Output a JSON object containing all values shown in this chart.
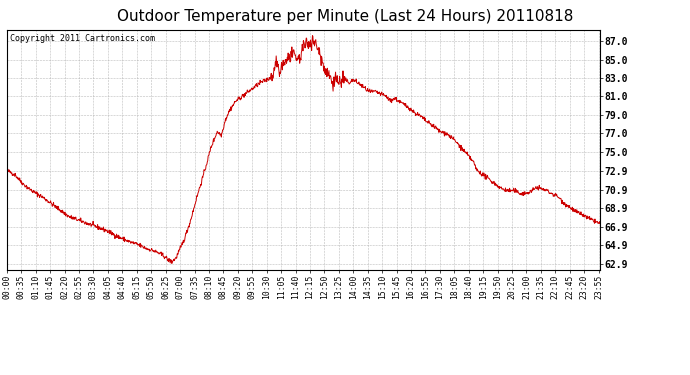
{
  "title": "Outdoor Temperature per Minute (Last 24 Hours) 20110818",
  "copyright": "Copyright 2011 Cartronics.com",
  "line_color": "#cc0000",
  "bg_color": "#ffffff",
  "plot_bg_color": "#ffffff",
  "grid_color": "#aaaaaa",
  "yticks": [
    62.9,
    64.9,
    66.9,
    68.9,
    70.9,
    72.9,
    75.0,
    77.0,
    79.0,
    81.0,
    83.0,
    85.0,
    87.0
  ],
  "ylim": [
    62.2,
    88.2
  ],
  "title_fontsize": 11,
  "copyright_fontsize": 6,
  "tick_interval_minutes": 35
}
